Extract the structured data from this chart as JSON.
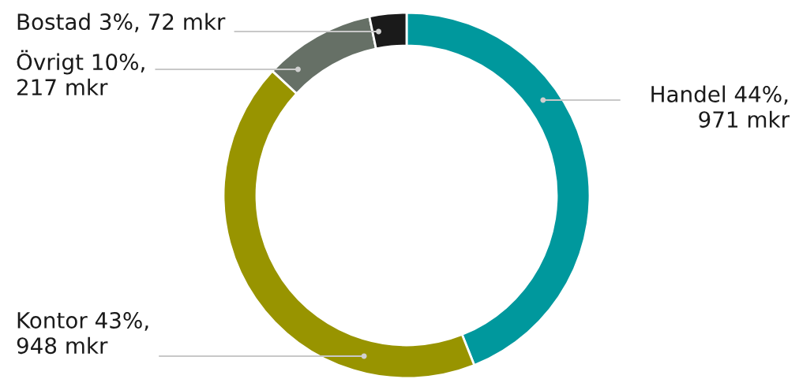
{
  "chart_data": {
    "type": "donut",
    "categories": [
      "Handel 44%,\n971 mkr",
      "Kontor 43%,\n948 mkr",
      "Övrigt 10%,\n217 mkr",
      "Bostad 3%, 72 mkr"
    ],
    "values": [
      971,
      948,
      217,
      72
    ],
    "colors": [
      "#00989d",
      "#989400",
      "#667066",
      "#1a1a1a"
    ],
    "legend": false
  }
}
